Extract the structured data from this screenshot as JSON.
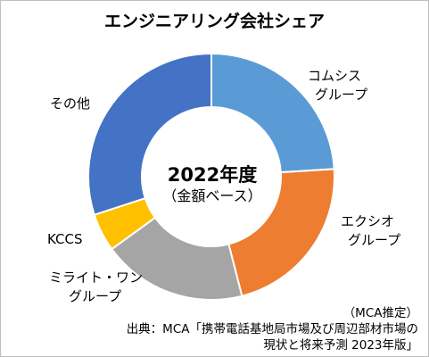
{
  "chart_data": {
    "type": "donut",
    "title": "エンジニアリング会社シェア",
    "center_label": "2022年度",
    "center_sublabel": "（金額ベース）",
    "unit": "%",
    "categories": [
      [
        "コムシス",
        "グループ"
      ],
      [
        "エクシオ",
        "グループ"
      ],
      [
        "ミライト・ワン",
        "グループ"
      ],
      [
        "KCCS"
      ],
      [
        "その他"
      ]
    ],
    "values": [
      24,
      22,
      19,
      5,
      30
    ],
    "colors": [
      "#5b9bd5",
      "#ed7d31",
      "#a5a5a5",
      "#ffc000",
      "#4472c4"
    ],
    "legend": "none",
    "start_angle_deg": 0,
    "direction": "clockwise"
  },
  "source": {
    "line1": "（MCA推定）",
    "line2": "出典：MCA「携帯電話基地局市場及び周辺部材市場の",
    "line3": "現状と将来予測 2023年版」"
  }
}
